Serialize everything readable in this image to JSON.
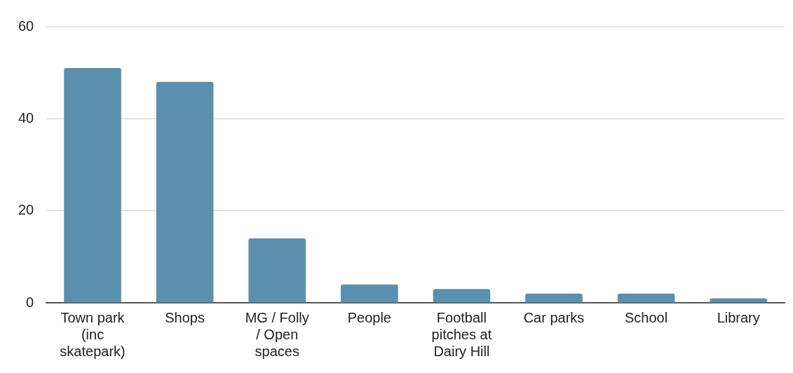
{
  "chart_data": {
    "type": "bar",
    "categories": [
      "Town park (inc skatepark)",
      "Shops",
      "MG / Folly / Open spaces",
      "People",
      "Football pitches at Dairy Hill",
      "Car parks",
      "School",
      "Library"
    ],
    "values": [
      51,
      48,
      14,
      4,
      3,
      2,
      2,
      1
    ],
    "color": "#5b8fae",
    "ylim": [
      0,
      60
    ],
    "yticks": [
      0,
      20,
      40,
      60
    ],
    "grid": "y",
    "legend": false
  }
}
